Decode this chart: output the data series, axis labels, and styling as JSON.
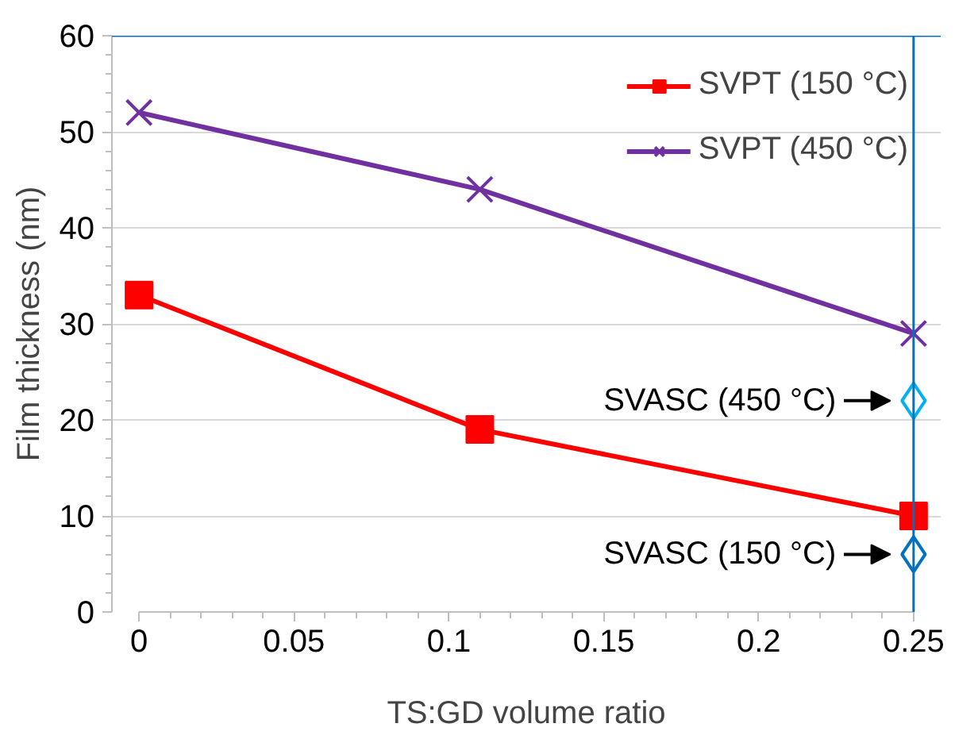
{
  "chart_data": {
    "type": "line",
    "xlabel": "TS:GD volume ratio",
    "ylabel": "Film thickness (nm)",
    "xlim": [
      0,
      0.25
    ],
    "ylim": [
      0,
      60
    ],
    "xticks": [
      0,
      0.05,
      0.1,
      0.15,
      0.2,
      0.25
    ],
    "yticks": [
      0,
      10,
      20,
      30,
      40,
      50,
      60
    ],
    "grid": "y",
    "legend": "top right",
    "series": [
      {
        "name": "SVPT (150 °C)",
        "color": "#ff0000",
        "marker": "square",
        "x": [
          0,
          0.11,
          0.25
        ],
        "values": [
          33,
          19,
          10
        ]
      },
      {
        "name": "SVPT (450 °C)",
        "color": "#7030a0",
        "marker": "cross",
        "x": [
          0,
          0.11,
          0.25
        ],
        "values": [
          52,
          44,
          29
        ]
      },
      {
        "type": "scatter",
        "color": "#00b0f0",
        "marker": "diamond",
        "x": [
          0.25
        ],
        "values": [
          22
        ]
      },
      {
        "type": "scatter",
        "color": "#0070c0",
        "marker": "diamond",
        "x": [
          0.25
        ],
        "values": [
          6
        ]
      }
    ],
    "annotations": [
      {
        "text": "SVASC (450 °C)",
        "x": 0.25,
        "y": 22
      },
      {
        "text": "SVASC (150 °C)",
        "x": 0.25,
        "y": 6
      }
    ]
  }
}
